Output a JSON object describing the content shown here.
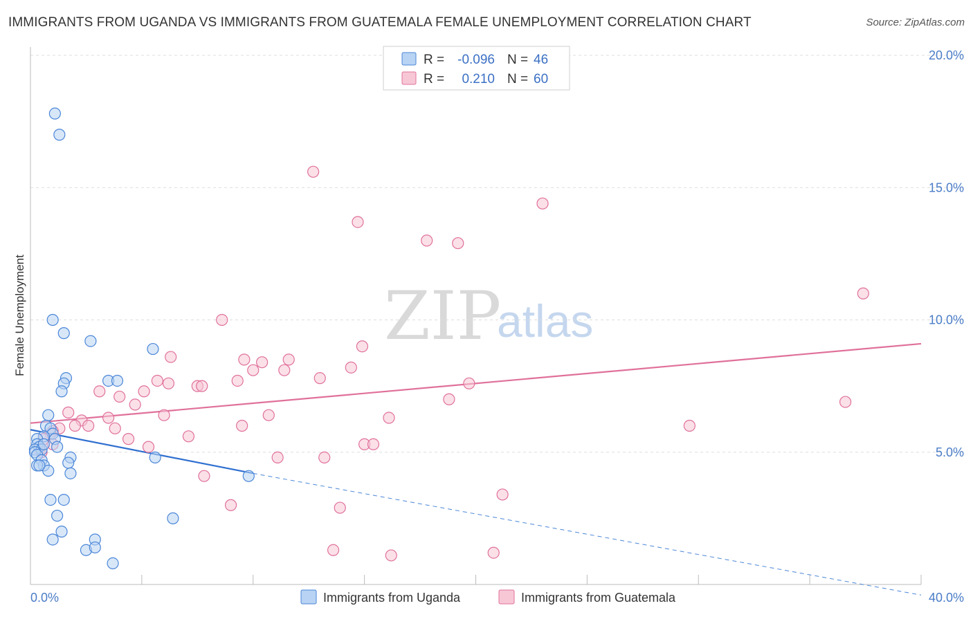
{
  "header": {
    "title": "IMMIGRANTS FROM UGANDA VS IMMIGRANTS FROM GUATEMALA FEMALE UNEMPLOYMENT CORRELATION CHART",
    "source": "Source: ZipAtlas.com"
  },
  "watermark": {
    "zip": "ZIP",
    "atlas": "atlas"
  },
  "colors": {
    "uganda": "#4a86d8",
    "uganda_fill": "#b8d3f3",
    "guatemala": "#e0709a",
    "guatemala_fill": "#f7c7d6",
    "grid": "#dddddd",
    "tick_text": "#4a7cc7"
  },
  "legend_top": {
    "rows": [
      {
        "r_label": "R = ",
        "r_value": "-0.096",
        "n_label": "N = ",
        "n_value": "46"
      },
      {
        "r_label": "R = ",
        "r_value": "0.210",
        "n_label": "N = ",
        "n_value": "60"
      }
    ]
  },
  "legend_bottom": {
    "items": [
      "Immigrants from Uganda",
      "Immigrants from Guatemala"
    ]
  },
  "chart_data": {
    "type": "scatter",
    "title": "IMMIGRANTS FROM UGANDA VS IMMIGRANTS FROM GUATEMALA FEMALE UNEMPLOYMENT CORRELATION CHART",
    "xlabel": "",
    "ylabel": "Female Unemployment",
    "xlim": [
      0,
      40
    ],
    "ylim": [
      0,
      20
    ],
    "x_tick_labels": [
      "0.0%",
      "40.0%"
    ],
    "y_ticks": [
      {
        "value": 5,
        "label": "5.0%"
      },
      {
        "value": 10,
        "label": "10.0%"
      },
      {
        "value": 15,
        "label": "15.0%"
      },
      {
        "value": 20,
        "label": "20.0%"
      }
    ],
    "series": [
      {
        "name": "Immigrants from Uganda",
        "R": -0.096,
        "N": 46,
        "points": [
          [
            1.1,
            17.8
          ],
          [
            1.3,
            17.0
          ],
          [
            1.0,
            10.0
          ],
          [
            1.5,
            9.5
          ],
          [
            2.7,
            9.2
          ],
          [
            5.5,
            8.9
          ],
          [
            1.6,
            7.8
          ],
          [
            1.5,
            7.6
          ],
          [
            3.5,
            7.7
          ],
          [
            3.9,
            7.7
          ],
          [
            1.4,
            7.3
          ],
          [
            0.8,
            6.4
          ],
          [
            0.7,
            6.0
          ],
          [
            0.9,
            5.9
          ],
          [
            1.0,
            5.7
          ],
          [
            0.6,
            5.6
          ],
          [
            1.1,
            5.5
          ],
          [
            0.3,
            5.5
          ],
          [
            0.3,
            5.3
          ],
          [
            0.4,
            5.2
          ],
          [
            0.2,
            5.1
          ],
          [
            0.5,
            5.1
          ],
          [
            1.2,
            5.2
          ],
          [
            0.2,
            5.0
          ],
          [
            0.3,
            4.9
          ],
          [
            0.5,
            4.7
          ],
          [
            1.8,
            4.8
          ],
          [
            5.6,
            4.8
          ],
          [
            0.6,
            4.5
          ],
          [
            1.7,
            4.6
          ],
          [
            0.3,
            4.5
          ],
          [
            0.8,
            4.3
          ],
          [
            1.8,
            4.2
          ],
          [
            9.8,
            4.1
          ],
          [
            0.9,
            3.2
          ],
          [
            1.5,
            3.2
          ],
          [
            1.2,
            2.6
          ],
          [
            6.4,
            2.5
          ],
          [
            1.4,
            2.0
          ],
          [
            1.0,
            1.7
          ],
          [
            2.9,
            1.7
          ],
          [
            2.5,
            1.3
          ],
          [
            2.9,
            1.4
          ],
          [
            3.7,
            0.8
          ],
          [
            0.4,
            4.5
          ],
          [
            0.6,
            5.3
          ]
        ],
        "trend": {
          "x0": 0,
          "y0": 5.85,
          "x1": 10.0,
          "y1": 4.2,
          "dashed_to_x": 40,
          "dashed_to_y": -0.4
        }
      },
      {
        "name": "Immigrants from Guatemala",
        "R": 0.21,
        "N": 60,
        "points": [
          [
            12.7,
            15.6
          ],
          [
            23.0,
            14.4
          ],
          [
            14.7,
            13.7
          ],
          [
            17.8,
            13.0
          ],
          [
            19.2,
            12.9
          ],
          [
            37.4,
            11.0
          ],
          [
            8.6,
            10.0
          ],
          [
            14.9,
            9.0
          ],
          [
            6.3,
            8.6
          ],
          [
            9.6,
            8.5
          ],
          [
            11.6,
            8.5
          ],
          [
            10.4,
            8.4
          ],
          [
            14.4,
            8.2
          ],
          [
            11.4,
            8.1
          ],
          [
            10.0,
            8.1
          ],
          [
            13.0,
            7.8
          ],
          [
            9.3,
            7.7
          ],
          [
            5.7,
            7.7
          ],
          [
            6.2,
            7.6
          ],
          [
            7.5,
            7.5
          ],
          [
            7.7,
            7.5
          ],
          [
            19.7,
            7.6
          ],
          [
            3.1,
            7.3
          ],
          [
            5.1,
            7.3
          ],
          [
            4.0,
            7.1
          ],
          [
            18.8,
            7.0
          ],
          [
            36.6,
            6.9
          ],
          [
            4.7,
            6.8
          ],
          [
            1.7,
            6.5
          ],
          [
            6.0,
            6.4
          ],
          [
            10.7,
            6.4
          ],
          [
            16.1,
            6.3
          ],
          [
            2.3,
            6.2
          ],
          [
            3.5,
            6.3
          ],
          [
            29.6,
            6.0
          ],
          [
            2.0,
            6.0
          ],
          [
            2.6,
            6.0
          ],
          [
            9.5,
            6.0
          ],
          [
            1.3,
            5.9
          ],
          [
            1.0,
            5.8
          ],
          [
            3.8,
            5.9
          ],
          [
            0.9,
            5.7
          ],
          [
            4.4,
            5.5
          ],
          [
            7.1,
            5.6
          ],
          [
            0.6,
            5.5
          ],
          [
            15.0,
            5.3
          ],
          [
            15.4,
            5.3
          ],
          [
            5.3,
            5.2
          ],
          [
            0.4,
            5.1
          ],
          [
            0.5,
            5.0
          ],
          [
            11.1,
            4.8
          ],
          [
            13.2,
            4.8
          ],
          [
            7.8,
            4.1
          ],
          [
            21.2,
            3.4
          ],
          [
            9.0,
            3.0
          ],
          [
            13.9,
            2.9
          ],
          [
            13.6,
            1.3
          ],
          [
            16.2,
            1.1
          ],
          [
            20.8,
            1.2
          ],
          [
            1.0,
            5.3
          ]
        ],
        "trend": {
          "x0": 0,
          "y0": 6.1,
          "x1": 40,
          "y1": 9.1
        }
      }
    ]
  }
}
